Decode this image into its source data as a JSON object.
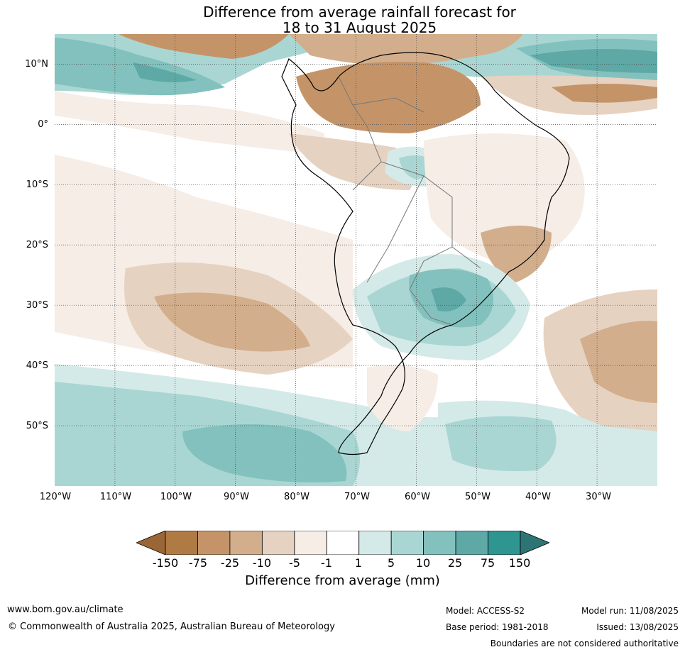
{
  "title": {
    "line1": "Difference from average rainfall forecast for",
    "line2": "18 to 31 August 2025"
  },
  "map": {
    "lat_labels": [
      "10°N",
      "0°",
      "10°S",
      "20°S",
      "30°S",
      "40°S",
      "50°S"
    ],
    "lon_labels": [
      "120°W",
      "110°W",
      "100°W",
      "90°W",
      "80°W",
      "70°W",
      "60°W",
      "50°W",
      "40°W",
      "30°W"
    ],
    "extent": {
      "lon": [
        -120,
        -20
      ],
      "lat": [
        -60,
        15
      ]
    },
    "projection": "equirectangular",
    "grid": true,
    "region": "South America and surrounding oceans"
  },
  "legend": {
    "ticks": [
      "-150",
      "-75",
      "-25",
      "-10",
      "-5",
      "-1",
      "1",
      "5",
      "10",
      "25",
      "75",
      "150"
    ],
    "colors": [
      "#9b6636",
      "#b07a44",
      "#c49468",
      "#d3ae8c",
      "#e6d2c0",
      "#f5ede6",
      "#ffffff",
      "#d4eae8",
      "#a9d6d3",
      "#82c1bd",
      "#5ea9a6",
      "#2f9590",
      "#2c7574"
    ],
    "label": "Difference from average (mm)"
  },
  "footer": {
    "website": "www.bom.gov.au/climate",
    "copyright": "© Commonwealth of Australia 2025, Australian Bureau of Meteorology",
    "model": "Model: ACCESS-S2",
    "base_period": "Base period: 1981-2018",
    "model_run": "Model run: 11/08/2025",
    "issued": "Issued: 13/08/2025",
    "boundaries_note": "Boundaries are not considered authoritative"
  }
}
